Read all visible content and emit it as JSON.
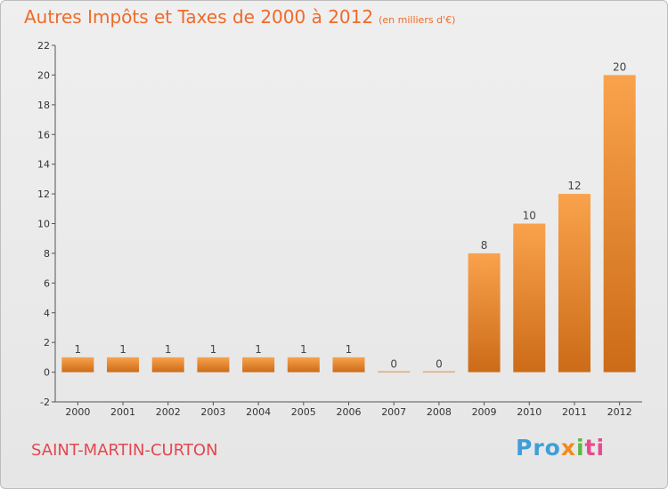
{
  "header": {
    "title": "Autres Impôts et Taxes de 2000 à 2012",
    "unit": "(en milliers d'€)"
  },
  "footer": {
    "commune": "SAINT-MARTIN-CURTON",
    "brand": [
      "Pro",
      "x",
      "i",
      "ti"
    ]
  },
  "colors": {
    "bar_light": "#f9a24c",
    "bar_dark": "#cc6b18",
    "title": "#f06a28",
    "commune": "#e4474f"
  },
  "chart_data": {
    "type": "bar",
    "title": "Autres Impôts et Taxes de 2000 à 2012",
    "subtitle": "(en milliers d'€)",
    "xlabel": "",
    "ylabel": "",
    "categories": [
      "2000",
      "2001",
      "2002",
      "2003",
      "2004",
      "2005",
      "2006",
      "2007",
      "2008",
      "2009",
      "2010",
      "2011",
      "2012"
    ],
    "values": [
      1,
      1,
      1,
      1,
      1,
      1,
      1,
      0,
      0,
      8,
      10,
      12,
      20
    ],
    "ylim": [
      -2,
      22
    ],
    "yticks": [
      -2,
      0,
      2,
      4,
      6,
      8,
      10,
      12,
      14,
      16,
      18,
      20,
      22
    ],
    "grid": false,
    "legend": "none"
  }
}
